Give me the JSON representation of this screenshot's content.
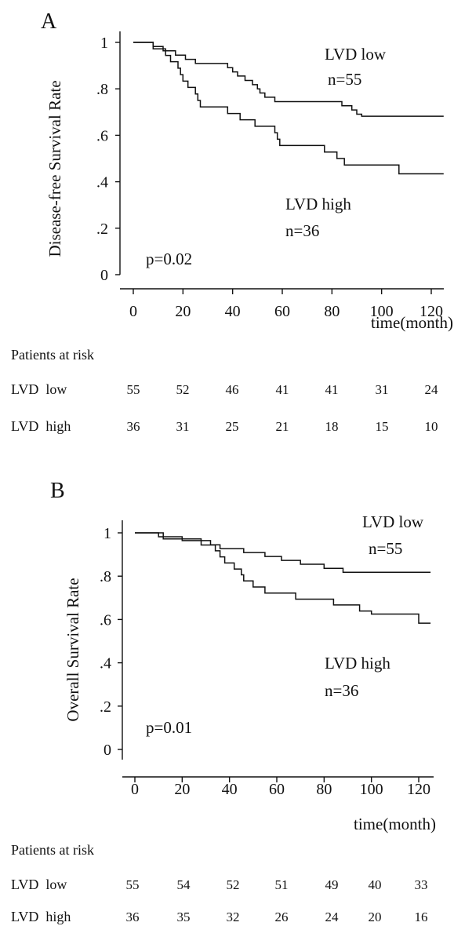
{
  "chart_data": [
    {
      "panel": "A",
      "type": "line",
      "ylabel": "Disease-free Survival Rate",
      "xlabel": "time(month)",
      "x_ticks": [
        0,
        20,
        40,
        60,
        80,
        100,
        120
      ],
      "y_ticks": [
        0,
        0.2,
        0.4,
        0.6,
        0.8,
        1
      ],
      "y_tick_labels": [
        "0",
        ".2",
        ".4",
        ".6",
        ".8",
        "1"
      ],
      "xlim": [
        0,
        125
      ],
      "ylim": [
        0,
        1
      ],
      "p_value": "p=0.02",
      "series": [
        {
          "name": "LVD low",
          "n_label": "n=55",
          "step": [
            [
              0,
              1.0
            ],
            [
              8,
              0.982
            ],
            [
              12,
              0.964
            ],
            [
              17,
              0.945
            ],
            [
              21,
              0.927
            ],
            [
              25,
              0.909
            ],
            [
              38,
              0.891
            ],
            [
              40,
              0.873
            ],
            [
              42,
              0.855
            ],
            [
              45,
              0.836
            ],
            [
              48,
              0.818
            ],
            [
              50,
              0.8
            ],
            [
              51,
              0.782
            ],
            [
              53,
              0.764
            ],
            [
              57,
              0.745
            ],
            [
              84,
              0.727
            ],
            [
              88,
              0.709
            ],
            [
              90,
              0.691
            ],
            [
              92,
              0.682
            ],
            [
              125,
              0.682
            ]
          ]
        },
        {
          "name": "LVD high",
          "n_label": "n=36",
          "step": [
            [
              0,
              1.0
            ],
            [
              8,
              0.972
            ],
            [
              13,
              0.944
            ],
            [
              15,
              0.917
            ],
            [
              18,
              0.889
            ],
            [
              19,
              0.861
            ],
            [
              20,
              0.833
            ],
            [
              22,
              0.806
            ],
            [
              25,
              0.778
            ],
            [
              26,
              0.75
            ],
            [
              27,
              0.722
            ],
            [
              38,
              0.694
            ],
            [
              43,
              0.667
            ],
            [
              49,
              0.639
            ],
            [
              57,
              0.611
            ],
            [
              58,
              0.583
            ],
            [
              59,
              0.556
            ],
            [
              77,
              0.528
            ],
            [
              82,
              0.5
            ],
            [
              85,
              0.472
            ],
            [
              107,
              0.434
            ],
            [
              125,
              0.434
            ]
          ]
        }
      ],
      "risk_table": {
        "title": "Patients at risk",
        "rows": [
          {
            "label": "LVD  low",
            "values": [
              "55",
              "52",
              "46",
              "41",
              "41",
              "31",
              "24"
            ]
          },
          {
            "label": "LVD  high",
            "values": [
              "36",
              "31",
              "25",
              "21",
              "18",
              "15",
              "10"
            ]
          }
        ]
      }
    },
    {
      "panel": "B",
      "type": "line",
      "ylabel": "Overall Survival Rate",
      "xlabel": "time(month)",
      "x_ticks": [
        0,
        20,
        40,
        60,
        80,
        100,
        120
      ],
      "y_ticks": [
        0,
        0.2,
        0.4,
        0.6,
        0.8,
        1
      ],
      "y_tick_labels": [
        "0",
        ".2",
        ".4",
        ".6",
        ".8",
        "1"
      ],
      "xlim": [
        0,
        125
      ],
      "ylim": [
        0,
        1
      ],
      "p_value": "p=0.01",
      "series": [
        {
          "name": "LVD low",
          "n_label": "n=55",
          "step": [
            [
              0,
              1.0
            ],
            [
              10,
              0.982
            ],
            [
              20,
              0.964
            ],
            [
              32,
              0.945
            ],
            [
              36,
              0.927
            ],
            [
              46,
              0.909
            ],
            [
              55,
              0.891
            ],
            [
              62,
              0.873
            ],
            [
              70,
              0.855
            ],
            [
              80,
              0.836
            ],
            [
              88,
              0.818
            ],
            [
              125,
              0.818
            ]
          ]
        },
        {
          "name": "LVD high",
          "n_label": "n=36",
          "step": [
            [
              0,
              1.0
            ],
            [
              12,
              0.972
            ],
            [
              28,
              0.944
            ],
            [
              34,
              0.917
            ],
            [
              36,
              0.889
            ],
            [
              38,
              0.861
            ],
            [
              42,
              0.833
            ],
            [
              45,
              0.806
            ],
            [
              46,
              0.778
            ],
            [
              50,
              0.75
            ],
            [
              55,
              0.722
            ],
            [
              68,
              0.694
            ],
            [
              84,
              0.667
            ],
            [
              95,
              0.639
            ],
            [
              100,
              0.625
            ],
            [
              120,
              0.583
            ],
            [
              125,
              0.583
            ]
          ]
        }
      ],
      "risk_table": {
        "title": "Patients at risk",
        "rows": [
          {
            "label": "LVD  low",
            "values": [
              "55",
              "54",
              "52",
              "51",
              "49",
              "40",
              "33"
            ]
          },
          {
            "label": "LVD  high",
            "values": [
              "36",
              "35",
              "32",
              "26",
              "24",
              "20",
              "16"
            ]
          }
        ]
      }
    }
  ]
}
